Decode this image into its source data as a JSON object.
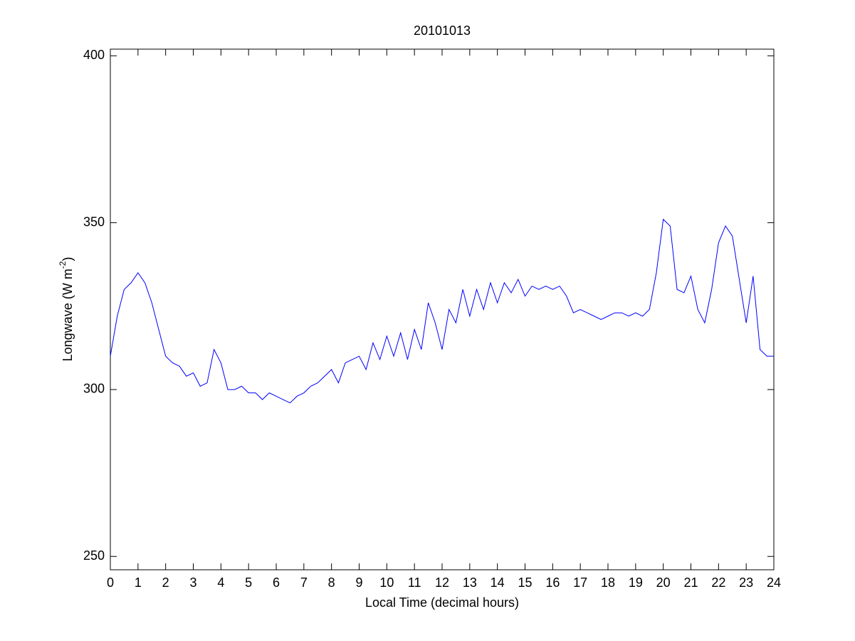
{
  "chart_data": {
    "type": "line",
    "title": "20101013",
    "xlabel": "Local Time (decimal hours)",
    "ylabel": {
      "text": "Longwave (W m",
      "superscript": "-2",
      "suffix": ")"
    },
    "xlim": [
      0,
      24
    ],
    "ylim": [
      246,
      402
    ],
    "xticks": [
      0,
      1,
      2,
      3,
      4,
      5,
      6,
      7,
      8,
      9,
      10,
      11,
      12,
      13,
      14,
      15,
      16,
      17,
      18,
      19,
      20,
      21,
      22,
      23,
      24
    ],
    "yticks": [
      250,
      300,
      350,
      400
    ],
    "grid": false,
    "x": [
      0,
      0.25,
      0.5,
      0.75,
      1,
      1.25,
      1.5,
      1.75,
      2,
      2.25,
      2.5,
      2.75,
      3,
      3.25,
      3.5,
      3.75,
      4,
      4.25,
      4.5,
      4.75,
      5,
      5.25,
      5.5,
      5.75,
      6,
      6.25,
      6.5,
      6.75,
      7,
      7.25,
      7.5,
      7.75,
      8,
      8.25,
      8.5,
      8.75,
      9,
      9.25,
      9.5,
      9.75,
      10,
      10.25,
      10.5,
      10.75,
      11,
      11.25,
      11.5,
      11.75,
      12,
      12.25,
      12.5,
      12.75,
      13,
      13.25,
      13.5,
      13.75,
      14,
      14.25,
      14.5,
      14.75,
      15,
      15.25,
      15.5,
      15.75,
      16,
      16.25,
      16.5,
      16.75,
      17,
      17.25,
      17.5,
      17.75,
      18,
      18.25,
      18.5,
      18.75,
      19,
      19.25,
      19.5,
      19.75,
      20,
      20.25,
      20.5,
      20.75,
      21,
      21.25,
      21.5,
      21.75,
      22,
      22.25,
      22.5,
      22.75,
      23,
      23.25,
      23.5,
      23.75,
      24
    ],
    "series": [
      {
        "color": "#0000ff",
        "values": [
          310,
          322,
          330,
          332,
          335,
          332,
          326,
          318,
          310,
          308,
          307,
          304,
          305,
          301,
          302,
          312,
          308,
          300,
          300,
          301,
          299,
          299,
          297,
          299,
          298,
          297,
          296,
          298,
          299,
          301,
          302,
          304,
          306,
          302,
          308,
          309,
          310,
          306,
          314,
          309,
          316,
          310,
          317,
          309,
          318,
          312,
          326,
          320,
          312,
          324,
          320,
          330,
          322,
          330,
          324,
          332,
          326,
          332,
          329,
          333,
          328,
          331,
          330,
          331,
          330,
          331,
          328,
          323,
          324,
          323,
          322,
          321,
          322,
          323,
          323,
          322,
          323,
          322,
          324,
          335,
          351,
          349,
          330,
          329,
          334,
          324,
          320,
          330,
          344,
          349,
          346,
          333,
          320,
          334,
          312,
          310,
          310
        ]
      }
    ]
  }
}
